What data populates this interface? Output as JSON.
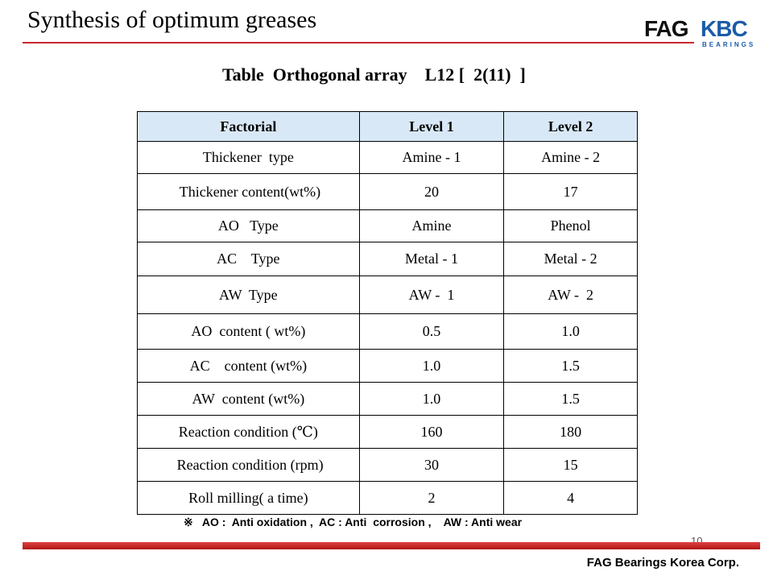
{
  "slide": {
    "title": "Synthesis of optimum greases",
    "page_number": "10"
  },
  "logo": {
    "brand1": "FAG",
    "brand2": "KBC",
    "tagline": "BEARINGS"
  },
  "table": {
    "caption": "Table  Orthogonal array    L12 [  2(11)  ]",
    "headers": [
      "Factorial",
      "Level 1",
      "Level 2"
    ],
    "rows": [
      [
        "Thickener  type",
        "Amine - 1",
        "Amine - 2"
      ],
      [
        " Thickener content(wt%)",
        "20",
        "17"
      ],
      [
        "AO   Type",
        "Amine",
        "Phenol"
      ],
      [
        "AC    Type",
        "Metal - 1",
        "Metal - 2"
      ],
      [
        "AW  Type",
        "AW -  1",
        "AW -  2"
      ],
      [
        "AO  content ( wt%)",
        "0.5",
        "1.0"
      ],
      [
        "AC    content (wt%)",
        "1.0",
        "1.5"
      ],
      [
        "AW  content (wt%)",
        "1.0",
        "1.5"
      ],
      [
        "Reaction condition (℃)",
        "160",
        "180"
      ],
      [
        " Reaction condition (rpm)",
        "30",
        "15"
      ],
      [
        "Roll milling( a time)",
        "2",
        "4"
      ]
    ]
  },
  "footnote": "※   AO :  Anti oxidation ,  AC : Anti  corrosion ,    AW : Anti wear",
  "footer": {
    "company": "FAG Bearings Korea Corp."
  },
  "colors": {
    "accent_red": "#c8282d",
    "header_fill": "#d9e8f7",
    "brand_blue": "#1b5ca8"
  }
}
